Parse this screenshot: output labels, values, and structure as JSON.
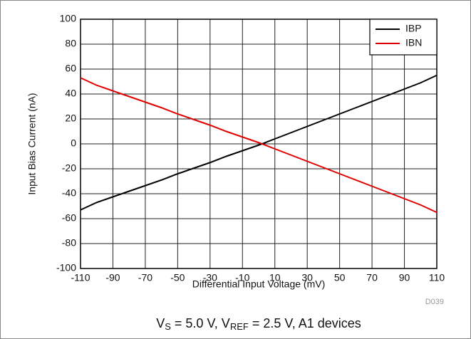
{
  "chart_data": {
    "type": "line",
    "x_label": "Differential Input Voltage (mV)",
    "y_label": "Input Bias Current (nA)",
    "x": [
      -110,
      -100,
      -90,
      -80,
      -70,
      -60,
      -50,
      -40,
      -30,
      -20,
      -10,
      0,
      10,
      20,
      30,
      40,
      50,
      60,
      70,
      80,
      90,
      100,
      110
    ],
    "series": [
      {
        "name": "IBP",
        "color": "#000000",
        "values": [
          -53,
          -47,
          -42.5,
          -38,
          -33.5,
          -29,
          -24,
          -19.5,
          -15,
          -10,
          -5.5,
          -1,
          4,
          9,
          14,
          19,
          24,
          29,
          34,
          39,
          44,
          49,
          55
        ]
      },
      {
        "name": "IBN",
        "color": "#e00000",
        "values": [
          53,
          47,
          42.5,
          38,
          33.5,
          29,
          24,
          19.5,
          15,
          10,
          5.5,
          1,
          -4,
          -9,
          -14,
          -19,
          -24,
          -29,
          -34,
          -39,
          -44,
          -49,
          -55
        ]
      }
    ],
    "xlim": [
      -110,
      110
    ],
    "xticks": [
      -110,
      -90,
      -70,
      -50,
      -30,
      -10,
      10,
      30,
      50,
      70,
      90,
      110
    ],
    "ylim": [
      -100,
      100
    ],
    "yticks": [
      -100,
      -80,
      -60,
      -40,
      -20,
      0,
      20,
      40,
      60,
      80,
      100
    ],
    "grid": true,
    "legend": "top-right",
    "code": "D039",
    "caption": [
      "V",
      "S",
      " = 5.0 V, V",
      "REF",
      " = 2.5 V, A1 devices"
    ]
  }
}
